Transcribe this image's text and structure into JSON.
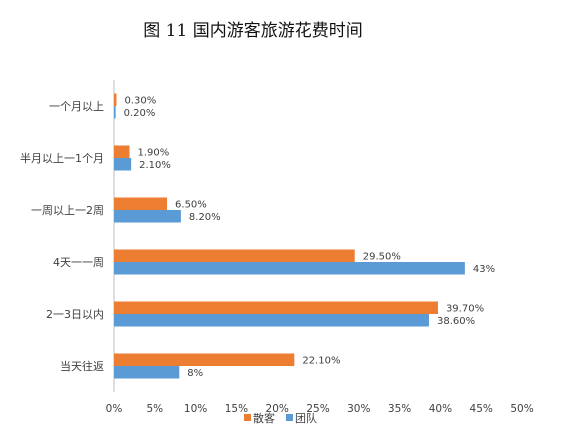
{
  "chart_data": {
    "type": "bar",
    "orientation": "horizontal",
    "title": "图 11  国内游客旅游花费时间",
    "categories": [
      "一个月以上",
      "半月以上一1个月",
      "一周以上一2周",
      "4天一一周",
      "2一3日以内",
      "当天往返"
    ],
    "series": [
      {
        "name": "散客",
        "color": "#ED7D31",
        "values": [
          0.3,
          1.9,
          6.5,
          29.5,
          39.7,
          22.1
        ],
        "labels": [
          "0.30%",
          "1.90%",
          "6.50%",
          "29.50%",
          "39.70%",
          "22.10%"
        ]
      },
      {
        "name": "团队",
        "color": "#5B9BD5",
        "values": [
          0.2,
          2.1,
          8.2,
          43,
          38.6,
          8
        ],
        "labels": [
          "0.20%",
          "2.10%",
          "8.20%",
          "43%",
          "38.60%",
          "8%"
        ]
      }
    ],
    "xlim": [
      0,
      50
    ],
    "xticks": [
      "0%",
      "5%",
      "10%",
      "15%",
      "20%",
      "25%",
      "30%",
      "35%",
      "40%",
      "45%",
      "50%"
    ],
    "grid": false,
    "legend_position": "bottom"
  }
}
